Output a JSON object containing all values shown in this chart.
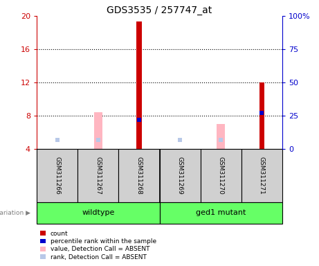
{
  "title": "GDS3535 / 257747_at",
  "samples": [
    "GSM311266",
    "GSM311267",
    "GSM311268",
    "GSM311269",
    "GSM311270",
    "GSM311271"
  ],
  "count_values": [
    null,
    null,
    19.3,
    null,
    null,
    12.0
  ],
  "rank_values": [
    null,
    null,
    7.5,
    null,
    null,
    8.3
  ],
  "absent_value_values": [
    null,
    8.4,
    null,
    null,
    7.0,
    null
  ],
  "absent_rank_values": [
    6.8,
    7.0,
    null,
    6.8,
    6.8,
    null
  ],
  "ylim_left": [
    4,
    20
  ],
  "ylim_right": [
    0,
    100
  ],
  "yticks_left": [
    4,
    8,
    12,
    16,
    20
  ],
  "yticks_right": [
    0,
    25,
    50,
    75,
    100
  ],
  "ytick_labels_left": [
    "4",
    "8",
    "12",
    "16",
    "20"
  ],
  "ytick_labels_right": [
    "0",
    "25",
    "50",
    "75",
    "100%"
  ],
  "left_axis_color": "#CC0000",
  "right_axis_color": "#0000CC",
  "bar_color_count": "#CC0000",
  "bar_color_rank": "#0000CC",
  "bar_color_absent_value": "#FFB6C1",
  "bar_color_absent_rank": "#B8C8E8",
  "sample_box_color": "#D0D0D0",
  "green_color": "#66FF66",
  "legend_items": [
    {
      "color": "#CC0000",
      "label": "count"
    },
    {
      "color": "#0000CC",
      "label": "percentile rank within the sample"
    },
    {
      "color": "#FFB6C1",
      "label": "value, Detection Call = ABSENT"
    },
    {
      "color": "#B8C8E8",
      "label": "rank, Detection Call = ABSENT"
    }
  ]
}
